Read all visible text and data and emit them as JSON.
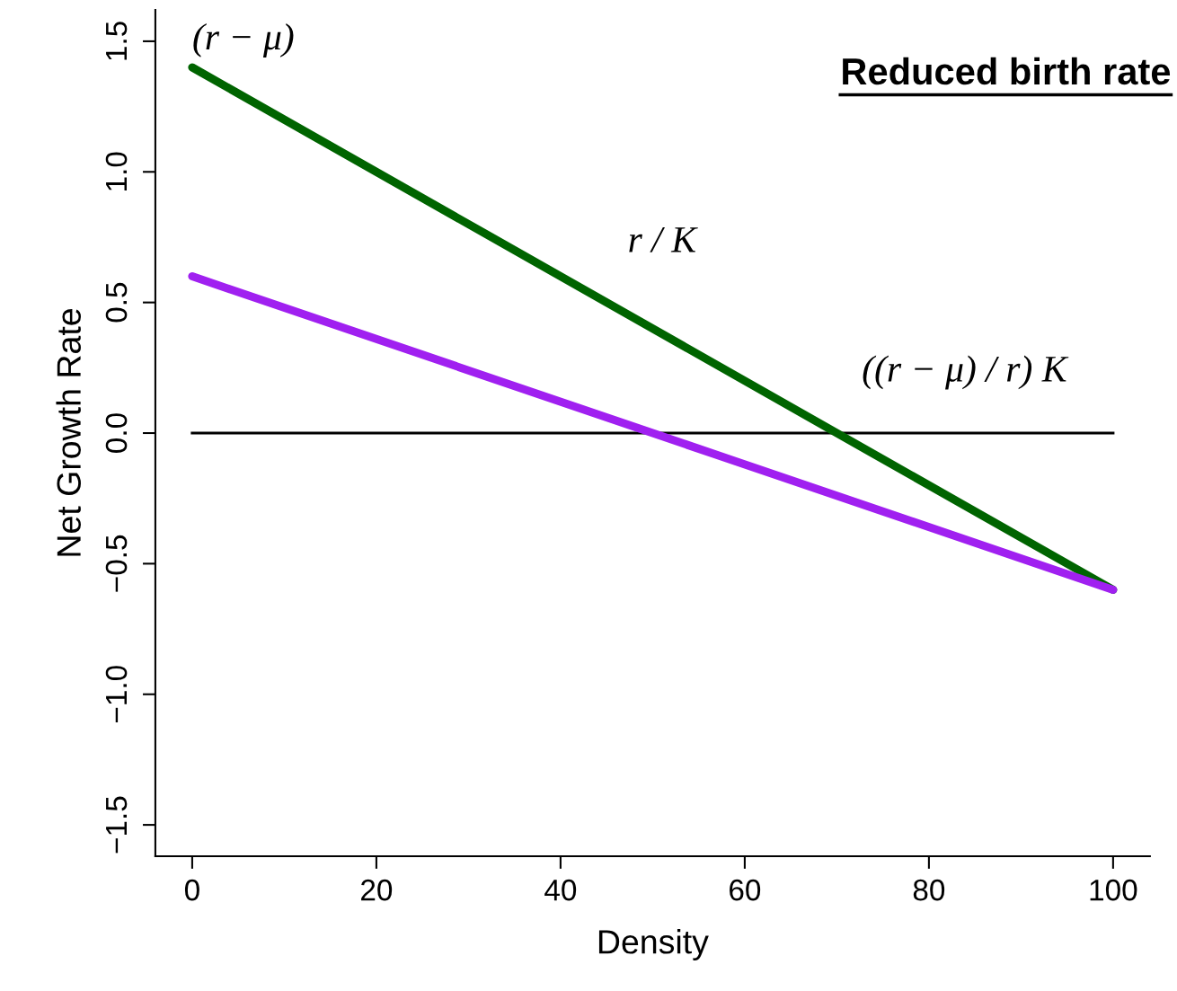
{
  "chart_data": {
    "type": "line",
    "title": "Reduced birth rate",
    "xlabel": "Density",
    "ylabel": "Net Growth Rate",
    "series": [
      {
        "color": "#006400",
        "values": [
          1.4,
          -0.6
        ]
      },
      {
        "color": "#a020f0",
        "values": [
          0.6,
          -0.6
        ]
      }
    ],
    "x": [
      0,
      100
    ],
    "xlim": [
      -4,
      104
    ],
    "ylim": [
      -1.62,
      1.62
    ],
    "xticks": [
      0,
      20,
      40,
      60,
      80,
      100
    ],
    "yticks": [
      -1.5,
      {
        "value": -1,
        "label": "−1.0"
      },
      -0.5,
      {
        "value": 0,
        "label": "0.0"
      },
      0.5,
      {
        "value": 1,
        "label": "1.0"
      },
      1.5
    ],
    "ref_lines": [
      {
        "axis": "y",
        "value": 0,
        "color": "#000000",
        "line_style": "solid"
      }
    ],
    "annotations": [
      {
        "text": "(r − μ)",
        "x": 0,
        "y": 1.4
      },
      {
        "text": "r / K",
        "x": 50,
        "y": 0.4
      },
      {
        "text": "((r − μ) / r) K",
        "x": 70,
        "y": 0
      }
    ],
    "grid": false,
    "legend": false,
    "marker": "none",
    "line_style": "solid"
  }
}
